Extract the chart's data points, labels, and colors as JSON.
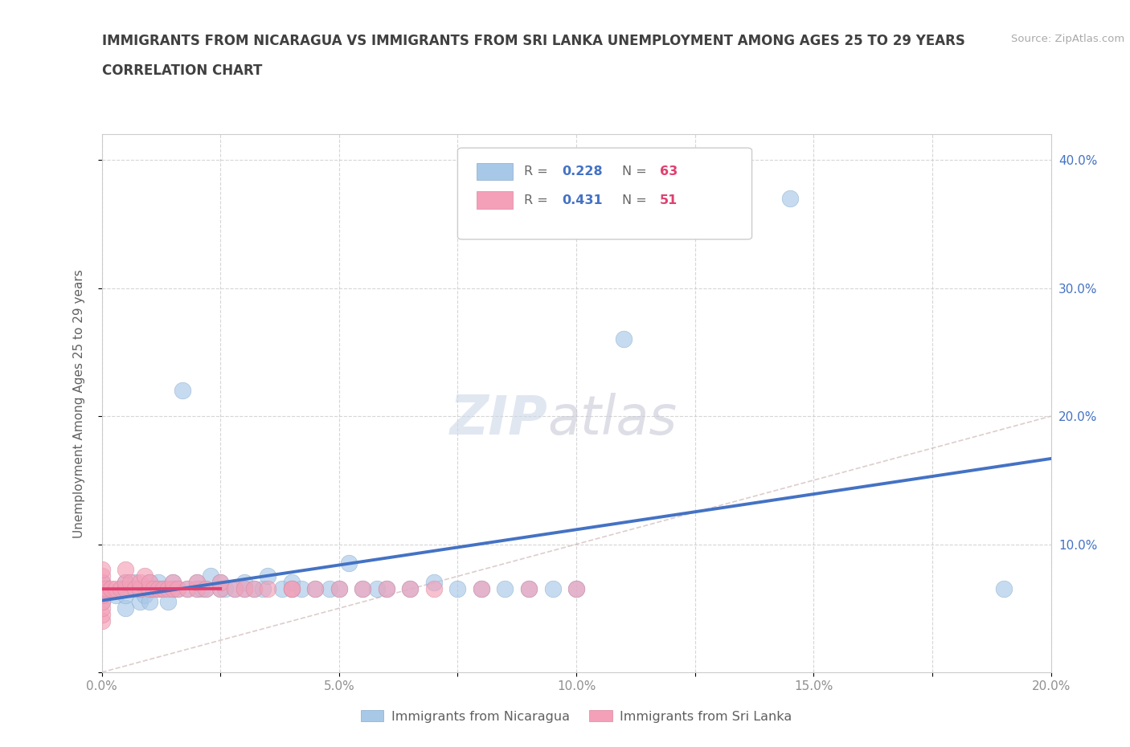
{
  "title": "IMMIGRANTS FROM NICARAGUA VS IMMIGRANTS FROM SRI LANKA UNEMPLOYMENT AMONG AGES 25 TO 29 YEARS",
  "subtitle": "CORRELATION CHART",
  "source": "Source: ZipAtlas.com",
  "ylabel": "Unemployment Among Ages 25 to 29 years",
  "xlim": [
    0.0,
    0.2
  ],
  "ylim": [
    0.0,
    0.42
  ],
  "xticks": [
    0.0,
    0.025,
    0.05,
    0.075,
    0.1,
    0.125,
    0.15,
    0.175,
    0.2
  ],
  "xticklabels": [
    "0.0%",
    "",
    "5.0%",
    "",
    "10.0%",
    "",
    "15.0%",
    "",
    "20.0%"
  ],
  "yticks_left": [
    0.0,
    0.1,
    0.2,
    0.3,
    0.4
  ],
  "yticklabels_left": [
    "",
    "",
    "",
    "",
    ""
  ],
  "yticks_right": [
    0.1,
    0.2,
    0.3,
    0.4
  ],
  "yticklabels_right": [
    "10.0%",
    "20.0%",
    "30.0%",
    "40.0%"
  ],
  "nicaragua_R": 0.228,
  "nicaragua_N": 63,
  "srilanka_R": 0.431,
  "srilanka_N": 51,
  "nicaragua_color": "#a8c8e8",
  "nicaragua_edge_color": "#88aacc",
  "nicaragua_line_color": "#4472c4",
  "srilanka_color": "#f4a0b8",
  "srilanka_edge_color": "#d888a0",
  "srilanka_line_color": "#e04070",
  "diag_line_color": "#d0b8b8",
  "nicaragua_x": [
    0.0,
    0.0,
    0.0,
    0.0,
    0.003,
    0.004,
    0.005,
    0.005,
    0.005,
    0.006,
    0.007,
    0.008,
    0.008,
    0.009,
    0.01,
    0.01,
    0.01,
    0.011,
    0.012,
    0.012,
    0.013,
    0.014,
    0.015,
    0.015,
    0.016,
    0.017,
    0.018,
    0.02,
    0.02,
    0.021,
    0.022,
    0.023,
    0.025,
    0.025,
    0.026,
    0.028,
    0.03,
    0.03,
    0.032,
    0.034,
    0.035,
    0.038,
    0.04,
    0.04,
    0.042,
    0.045,
    0.048,
    0.05,
    0.052,
    0.055,
    0.058,
    0.06,
    0.065,
    0.07,
    0.075,
    0.08,
    0.085,
    0.09,
    0.095,
    0.1,
    0.11,
    0.145,
    0.19
  ],
  "nicaragua_y": [
    0.055,
    0.06,
    0.065,
    0.07,
    0.06,
    0.065,
    0.05,
    0.06,
    0.07,
    0.065,
    0.07,
    0.055,
    0.065,
    0.06,
    0.055,
    0.065,
    0.07,
    0.065,
    0.065,
    0.07,
    0.065,
    0.055,
    0.065,
    0.07,
    0.065,
    0.22,
    0.065,
    0.065,
    0.07,
    0.065,
    0.065,
    0.075,
    0.065,
    0.07,
    0.065,
    0.065,
    0.065,
    0.07,
    0.065,
    0.065,
    0.075,
    0.065,
    0.065,
    0.07,
    0.065,
    0.065,
    0.065,
    0.065,
    0.085,
    0.065,
    0.065,
    0.065,
    0.065,
    0.07,
    0.065,
    0.065,
    0.065,
    0.065,
    0.065,
    0.065,
    0.26,
    0.37,
    0.065
  ],
  "srilanka_x": [
    0.0,
    0.0,
    0.0,
    0.0,
    0.0,
    0.0,
    0.0,
    0.0,
    0.0,
    0.001,
    0.002,
    0.003,
    0.004,
    0.005,
    0.005,
    0.005,
    0.006,
    0.007,
    0.008,
    0.008,
    0.009,
    0.01,
    0.01,
    0.011,
    0.012,
    0.013,
    0.014,
    0.015,
    0.015,
    0.016,
    0.018,
    0.02,
    0.02,
    0.022,
    0.025,
    0.025,
    0.028,
    0.03,
    0.032,
    0.035,
    0.04,
    0.04,
    0.045,
    0.05,
    0.055,
    0.06,
    0.065,
    0.07,
    0.08,
    0.09,
    0.1
  ],
  "srilanka_y": [
    0.04,
    0.045,
    0.05,
    0.055,
    0.06,
    0.065,
    0.07,
    0.075,
    0.08,
    0.065,
    0.065,
    0.065,
    0.065,
    0.065,
    0.07,
    0.08,
    0.07,
    0.065,
    0.065,
    0.07,
    0.075,
    0.065,
    0.07,
    0.065,
    0.065,
    0.065,
    0.065,
    0.065,
    0.07,
    0.065,
    0.065,
    0.065,
    0.07,
    0.065,
    0.065,
    0.07,
    0.065,
    0.065,
    0.065,
    0.065,
    0.065,
    0.065,
    0.065,
    0.065,
    0.065,
    0.065,
    0.065,
    0.065,
    0.065,
    0.065,
    0.065
  ],
  "background_color": "#ffffff",
  "grid_color": "#cccccc",
  "title_color": "#404040",
  "axis_label_color": "#606060",
  "tick_label_color": "#909090",
  "legend_R_color": "#4472c4",
  "legend_N_color": "#e04070"
}
